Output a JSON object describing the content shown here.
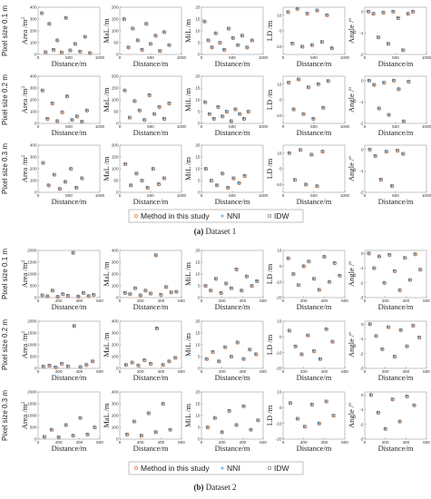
{
  "figure": {
    "legend": {
      "items": [
        {
          "label": "Method in this study",
          "color": "#e07b39",
          "marker": "circle"
        },
        {
          "label": "NNI",
          "color": "#2f8fd6",
          "marker": "plus"
        },
        {
          "label": "IDW",
          "color": "#666666",
          "marker": "square"
        }
      ]
    },
    "captions": [
      {
        "letter": "(a)",
        "text": "Dataset 1"
      },
      {
        "letter": "(b)",
        "text": "Dataset 2"
      }
    ],
    "row_labels": [
      "Pixel size 0.1 m",
      "Pixel size 0.2 m",
      "Pixel size 0.3 m"
    ],
    "column_ylabels": [
      "Area /m",
      "MaL /m",
      "MiL /m",
      "LD /m",
      "Angle /"
    ],
    "ylabel_sups": [
      "2",
      "",
      "",
      "",
      "o"
    ],
    "xlabel": "Distance/m"
  },
  "chart_data": [
    {
      "dataset": "Dataset 1",
      "type": "scatter",
      "xlim": [
        0,
        1000
      ],
      "xticks": [
        0,
        500,
        1000
      ],
      "yaxes": [
        {
          "ylabel": "Area /m²",
          "ylim": [
            0,
            400
          ],
          "yticks": [
            0,
            100,
            200,
            300,
            400
          ]
        },
        {
          "ylabel": "MaL /m",
          "ylim": [
            0,
            200
          ],
          "yticks": [
            0,
            50,
            100,
            150,
            200
          ]
        },
        {
          "ylabel": "MiL /m",
          "ylim": [
            0,
            20
          ],
          "yticks": [
            0,
            5,
            10,
            15,
            20
          ]
        },
        {
          "ylabel": "LD /m",
          "ylim": [
            -15,
            15
          ],
          "yticks": [
            -10,
            0,
            10
          ]
        },
        {
          "ylabel": "Angle /°",
          "ylim": [
            -2,
            0.2
          ],
          "yticks": [
            -2,
            -1,
            0
          ]
        }
      ],
      "rows": [
        {
          "label": "Pixel size 0.1 m",
          "panels": [
            {
              "x": [
                60,
                120,
                180,
                250,
                310,
                380,
                450,
                520,
                600,
                680,
                760,
                840
              ],
              "y": [
                350,
                20,
                260,
                40,
                120,
                18,
                310,
                35,
                90,
                25,
                150,
                12
              ]
            },
            {
              "x": [
                70,
                140,
                210,
                290,
                360,
                430,
                500,
                580,
                650,
                720,
                800
              ],
              "y": [
                150,
                30,
                110,
                60,
                20,
                130,
                45,
                80,
                15,
                95,
                40
              ]
            },
            {
              "x": [
                50,
                110,
                170,
                230,
                300,
                370,
                440,
                510,
                590,
                660,
                740,
                820
              ],
              "y": [
                14,
                6,
                3,
                9,
                5,
                2,
                11,
                7,
                4,
                8,
                3,
                6
              ]
            },
            {
              "x": [
                80,
                150,
                230,
                310,
                390,
                470,
                550,
                630,
                710,
                790
              ],
              "y": [
                12,
                -8,
                14,
                -10,
                11,
                -9,
                13,
                -7,
                10,
                -11
              ]
            },
            {
              "x": [
                60,
                140,
                220,
                300,
                380,
                460,
                540,
                620,
                700,
                780
              ],
              "y": [
                0,
                -0.1,
                -1.2,
                -0.05,
                -1.5,
                0,
                -0.3,
                -1.8,
                -0.1,
                0
              ]
            }
          ]
        },
        {
          "label": "Pixel size 0.2 m",
          "panels": [
            {
              "x": [
                70,
                150,
                230,
                310,
                390,
                470,
                550,
                630,
                710,
                790
              ],
              "y": [
                280,
                40,
                170,
                20,
                95,
                230,
                30,
                60,
                15,
                110
              ]
            },
            {
              "x": [
                80,
                160,
                240,
                320,
                400,
                480,
                560,
                640,
                720,
                800
              ],
              "y": [
                140,
                25,
                95,
                55,
                15,
                120,
                40,
                70,
                20,
                85
              ]
            },
            {
              "x": [
                60,
                130,
                200,
                270,
                340,
                410,
                480,
                550,
                620,
                690,
                760
              ],
              "y": [
                9,
                4,
                2,
                7,
                3,
                5,
                1,
                6,
                4,
                2,
                5
              ]
            },
            {
              "x": [
                90,
                170,
                250,
                330,
                410,
                490,
                570,
                650,
                730
              ],
              "y": [
                11,
                -6,
                13,
                -9,
                8,
                -12,
                10,
                -5,
                12
              ]
            },
            {
              "x": [
                70,
                150,
                230,
                310,
                390,
                470,
                550,
                630,
                710
              ],
              "y": [
                0,
                -0.2,
                -1.3,
                -0.1,
                -1.6,
                0,
                -0.4,
                -1.9,
                -0.05
              ]
            }
          ]
        },
        {
          "label": "Pixel size 0.3 m",
          "panels": [
            {
              "x": [
                80,
                170,
                260,
                350,
                440,
                530,
                620,
                710
              ],
              "y": [
                250,
                60,
                150,
                30,
                90,
                200,
                40,
                120
              ]
            },
            {
              "x": [
                90,
                180,
                270,
                360,
                450,
                540,
                630,
                720
              ],
              "y": [
                120,
                30,
                80,
                50,
                20,
                100,
                35,
                60
              ]
            },
            {
              "x": [
                70,
                160,
                250,
                340,
                430,
                520,
                610,
                700
              ],
              "y": [
                10,
                5,
                3,
                8,
                2,
                6,
                4,
                7
              ]
            },
            {
              "x": [
                100,
                190,
                280,
                370,
                460,
                550,
                640
              ],
              "y": [
                10,
                -7,
                12,
                -10,
                9,
                -11,
                11
              ]
            },
            {
              "x": [
                80,
                170,
                260,
                350,
                440,
                530,
                620
              ],
              "y": [
                0,
                -0.3,
                -1.4,
                -0.1,
                -1.7,
                -0.05,
                -0.2
              ]
            }
          ]
        }
      ]
    },
    {
      "dataset": "Dataset 2",
      "type": "scatter",
      "xlim": [
        0,
        600
      ],
      "xticks": [
        0,
        200,
        400,
        600
      ],
      "yaxes": [
        {
          "ylabel": "Area /m²",
          "ylim": [
            0,
            2000
          ],
          "yticks": [
            0,
            500,
            1000,
            1500,
            2000
          ]
        },
        {
          "ylabel": "MaL /m",
          "ylim": [
            0,
            400
          ],
          "yticks": [
            0,
            100,
            200,
            300,
            400
          ]
        },
        {
          "ylabel": "MiL /m",
          "ylim": [
            0,
            20
          ],
          "yticks": [
            0,
            5,
            10,
            15,
            20
          ]
        },
        {
          "ylabel": "LD /m",
          "ylim": [
            -20,
            10
          ],
          "yticks": [
            -20,
            -10,
            0,
            10
          ]
        },
        {
          "ylabel": "Angle /°",
          "ylim": [
            -3,
            0.2
          ],
          "yticks": [
            -3,
            -2,
            -1,
            0
          ]
        }
      ],
      "rows": [
        {
          "label": "Pixel size 0.1 m",
          "panels": [
            {
              "x": [
                40,
                90,
                140,
                190,
                240,
                290,
                340,
                390,
                440,
                490,
                540
              ],
              "y": [
                100,
                60,
                300,
                40,
                150,
                80,
                1900,
                50,
                200,
                70,
                120
              ]
            },
            {
              "x": [
                50,
                100,
                150,
                200,
                250,
                300,
                350,
                400,
                450,
                500,
                550
              ],
              "y": [
                40,
                30,
                80,
                20,
                60,
                35,
                360,
                25,
                90,
                45,
                50
              ]
            },
            {
              "x": [
                40,
                90,
                140,
                190,
                240,
                290,
                340,
                390,
                440,
                490,
                540
              ],
              "y": [
                5,
                3,
                8,
                2,
                6,
                4,
                12,
                3,
                9,
                5,
                7
              ]
            },
            {
              "x": [
                50,
                100,
                150,
                200,
                250,
                300,
                350,
                400,
                450,
                500,
                550
              ],
              "y": [
                5,
                -5,
                -12,
                0,
                3,
                -8,
                -15,
                6,
                -10,
                2,
                -6
              ]
            },
            {
              "x": [
                40,
                90,
                140,
                190,
                240,
                290,
                340,
                390,
                440,
                490,
                540
              ],
              "y": [
                0,
                -1,
                -0.2,
                -2,
                -0.1,
                -1.2,
                -2.5,
                -0.3,
                -1.8,
                -0.05,
                -1.1
              ]
            }
          ]
        },
        {
          "label": "Pixel size 0.2 m",
          "panels": [
            {
              "x": [
                50,
                110,
                170,
                230,
                290,
                350,
                410,
                470,
                530
              ],
              "y": [
                80,
                120,
                50,
                200,
                90,
                1800,
                60,
                150,
                300
              ]
            },
            {
              "x": [
                60,
                120,
                180,
                240,
                300,
                360,
                420,
                480,
                540
              ],
              "y": [
                30,
                50,
                25,
                70,
                40,
                340,
                30,
                60,
                90
              ]
            },
            {
              "x": [
                50,
                110,
                170,
                230,
                290,
                350,
                410,
                470,
                530
              ],
              "y": [
                4,
                7,
                3,
                9,
                5,
                11,
                4,
                8,
                6
              ]
            },
            {
              "x": [
                60,
                120,
                180,
                240,
                300,
                360,
                420,
                480
              ],
              "y": [
                4,
                -6,
                -11,
                1,
                -9,
                -14,
                5,
                -3
              ]
            },
            {
              "x": [
                50,
                110,
                170,
                230,
                290,
                350,
                410,
                470,
                530
              ],
              "y": [
                0,
                -0.8,
                -1.7,
                -0.2,
                -2.2,
                -0.4,
                -1.5,
                -0.1,
                -0.9
              ]
            }
          ]
        },
        {
          "label": "Pixel size 0.3 m",
          "panels": [
            {
              "x": [
                60,
                130,
                200,
                270,
                340,
                410,
                480,
                550
              ],
              "y": [
                100,
                400,
                80,
                600,
                150,
                900,
                200,
                500
              ]
            },
            {
              "x": [
                70,
                140,
                210,
                280,
                350,
                420,
                490
              ],
              "y": [
                40,
                150,
                30,
                220,
                60,
                300,
                80
              ]
            },
            {
              "x": [
                60,
                130,
                200,
                270,
                340,
                410,
                480,
                550
              ],
              "y": [
                5,
                9,
                3,
                12,
                6,
                14,
                4,
                8
              ]
            },
            {
              "x": [
                70,
                140,
                210,
                280,
                350,
                420,
                490
              ],
              "y": [
                3,
                -7,
                -12,
                2,
                -10,
                4,
                -5
              ]
            },
            {
              "x": [
                60,
                130,
                200,
                270,
                340,
                410,
                480
              ],
              "y": [
                0,
                -1.2,
                -2.3,
                -0.3,
                -1.8,
                -0.1,
                -0.7
              ]
            }
          ]
        }
      ]
    }
  ]
}
